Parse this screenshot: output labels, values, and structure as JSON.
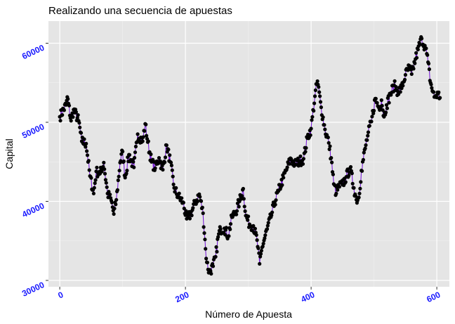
{
  "chart_data": {
    "type": "line",
    "title": "Realizando una secuencia de apuestas",
    "xlabel": "Número de Apuesta",
    "ylabel": "Capital",
    "xlim": [
      -18,
      620
    ],
    "ylim": [
      29200,
      62800
    ],
    "x_ticks": [
      0,
      200,
      400,
      600
    ],
    "x_tick_labels": [
      "0",
      "200",
      "400",
      "600"
    ],
    "y_ticks": [
      30000,
      40000,
      50000,
      60000
    ],
    "y_tick_labels": [
      "30000",
      "40000",
      "50000",
      "60000"
    ],
    "grid": true,
    "legend": "none",
    "colors": {
      "panel_bg": "#e5e5e5",
      "grid_major": "#ffffff",
      "grid_minor": "#f2f2f2",
      "line": "#7a1fd6",
      "points": "#000000",
      "tick_labels": "#1a1aff"
    },
    "series": [
      {
        "points_marked": true,
        "key_points": [
          [
            0,
            50700
          ],
          [
            10,
            52200
          ],
          [
            12,
            53200
          ],
          [
            18,
            50200
          ],
          [
            22,
            51600
          ],
          [
            30,
            50200
          ],
          [
            35,
            47600
          ],
          [
            42,
            47300
          ],
          [
            48,
            43200
          ],
          [
            54,
            41000
          ],
          [
            58,
            43800
          ],
          [
            64,
            43500
          ],
          [
            70,
            44900
          ],
          [
            76,
            41000
          ],
          [
            82,
            40100
          ],
          [
            86,
            38400
          ],
          [
            90,
            40200
          ],
          [
            96,
            44900
          ],
          [
            100,
            46300
          ],
          [
            104,
            43000
          ],
          [
            110,
            45900
          ],
          [
            118,
            44300
          ],
          [
            124,
            48500
          ],
          [
            132,
            47600
          ],
          [
            136,
            49800
          ],
          [
            140,
            47500
          ],
          [
            146,
            45000
          ],
          [
            152,
            44200
          ],
          [
            158,
            45500
          ],
          [
            164,
            44000
          ],
          [
            170,
            47100
          ],
          [
            176,
            45000
          ],
          [
            182,
            41700
          ],
          [
            188,
            40700
          ],
          [
            196,
            39900
          ],
          [
            202,
            37800
          ],
          [
            208,
            38300
          ],
          [
            216,
            39900
          ],
          [
            222,
            40900
          ],
          [
            228,
            38500
          ],
          [
            232,
            34000
          ],
          [
            234,
            32300
          ],
          [
            238,
            31000
          ],
          [
            244,
            31800
          ],
          [
            248,
            33000
          ],
          [
            252,
            35500
          ],
          [
            256,
            36500
          ],
          [
            262,
            36600
          ],
          [
            268,
            35600
          ],
          [
            274,
            38000
          ],
          [
            280,
            38700
          ],
          [
            286,
            40000
          ],
          [
            292,
            41600
          ],
          [
            296,
            38200
          ],
          [
            302,
            37100
          ],
          [
            308,
            36900
          ],
          [
            314,
            35100
          ],
          [
            318,
            32100
          ],
          [
            322,
            34200
          ],
          [
            330,
            36500
          ],
          [
            336,
            38000
          ],
          [
            342,
            39900
          ],
          [
            348,
            41300
          ],
          [
            356,
            43000
          ],
          [
            362,
            44300
          ],
          [
            368,
            45400
          ],
          [
            374,
            44700
          ],
          [
            382,
            45100
          ],
          [
            388,
            45400
          ],
          [
            394,
            48000
          ],
          [
            400,
            49200
          ],
          [
            406,
            53300
          ],
          [
            410,
            55200
          ],
          [
            416,
            51900
          ],
          [
            422,
            49100
          ],
          [
            428,
            47400
          ],
          [
            432,
            45500
          ],
          [
            436,
            42200
          ],
          [
            440,
            41000
          ],
          [
            444,
            41900
          ],
          [
            450,
            42100
          ],
          [
            456,
            43100
          ],
          [
            462,
            44200
          ],
          [
            468,
            41700
          ],
          [
            472,
            40200
          ],
          [
            476,
            40500
          ],
          [
            480,
            43900
          ],
          [
            486,
            46700
          ],
          [
            490,
            48300
          ],
          [
            496,
            50100
          ],
          [
            502,
            53000
          ],
          [
            508,
            51800
          ],
          [
            512,
            52800
          ],
          [
            516,
            50700
          ],
          [
            520,
            52200
          ],
          [
            526,
            53500
          ],
          [
            532,
            54700
          ],
          [
            538,
            53900
          ],
          [
            544,
            54300
          ],
          [
            550,
            56000
          ],
          [
            556,
            56900
          ],
          [
            560,
            56100
          ],
          [
            566,
            58000
          ],
          [
            570,
            59200
          ],
          [
            576,
            60600
          ],
          [
            582,
            59400
          ],
          [
            586,
            57600
          ],
          [
            590,
            55000
          ],
          [
            596,
            53200
          ],
          [
            602,
            53600
          ],
          [
            605,
            53100
          ]
        ]
      }
    ]
  }
}
